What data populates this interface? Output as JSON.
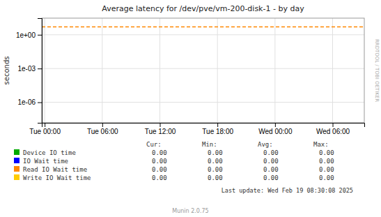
{
  "chart_data": {
    "type": "line",
    "title": "Average latency for /dev/pve/vm-200-disk-1  -  by day",
    "y_label": "seconds",
    "log": "y",
    "grid": true,
    "legend": "bottom",
    "xlim": [
      -0.05,
      5.55
    ],
    "xticks": [
      {
        "value": 0,
        "label": "Tue 00:00"
      },
      {
        "value": 1,
        "label": "Tue 06:00"
      },
      {
        "value": 2,
        "label": "Tue 12:00"
      },
      {
        "value": 3,
        "label": "Tue 18:00"
      },
      {
        "value": 4,
        "label": "Wed 00:00"
      },
      {
        "value": 5,
        "label": "Wed 06:00"
      }
    ],
    "ylim": [
      1.5e-08,
      30
    ],
    "yticks": [
      {
        "value": 1e-06,
        "label": "1e-06"
      },
      {
        "value": 0.001,
        "label": "1e-03"
      },
      {
        "value": 1,
        "label": "1e+00"
      }
    ],
    "reference_lines": [
      {
        "y": 5.0,
        "color": "#ff8800",
        "line_style": "dashed"
      }
    ],
    "series": [
      {
        "name": "Device IO time",
        "color": "#00aa00",
        "values": []
      },
      {
        "name": "IO Wait time",
        "color": "#0000ff",
        "values": []
      },
      {
        "name": "Read IO Wait time",
        "color": "#ff8800",
        "values": []
      },
      {
        "name": "Write IO Wait time",
        "color": "#ffcc00",
        "values": []
      }
    ],
    "table": {
      "headers": [
        "Cur:",
        "Min:",
        "Avg:",
        "Max:"
      ],
      "values": [
        [
          0,
          0,
          0,
          0
        ],
        [
          0,
          0,
          0,
          0
        ],
        [
          0,
          0,
          0,
          0
        ],
        [
          0,
          0,
          0,
          0
        ]
      ],
      "value_labels": [
        [
          "0.00",
          "0.00",
          "0.00",
          "0.00"
        ],
        [
          "0.00",
          "0.00",
          "0.00",
          "0.00"
        ],
        [
          "0.00",
          "0.00",
          "0.00",
          "0.00"
        ],
        [
          "0.00",
          "0.00",
          "0.00",
          "0.00"
        ]
      ]
    },
    "annotations": [
      "RRDTOOL / TOBI OETIKER",
      "Last update: Wed Feb 19 08:30:08 2025",
      "Munin 2.0.75"
    ]
  }
}
